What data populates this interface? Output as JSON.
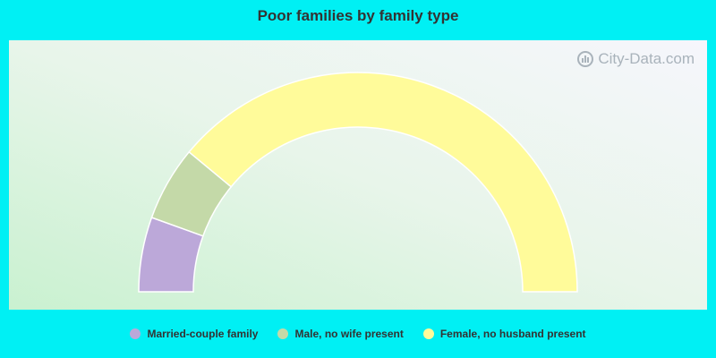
{
  "chart_data": {
    "type": "pie",
    "subtype": "half-donut",
    "title": "Poor families by family type",
    "categories": [
      "Married-couple family",
      "Male, no wife present",
      "Female, no husband present"
    ],
    "values": [
      11,
      11,
      78
    ],
    "colors": [
      "#bca8d9",
      "#c4d9a8",
      "#fffb9a"
    ],
    "legend_position": "bottom"
  },
  "watermark": {
    "text": "City-Data.com",
    "icon": "city-data-logo-icon"
  }
}
